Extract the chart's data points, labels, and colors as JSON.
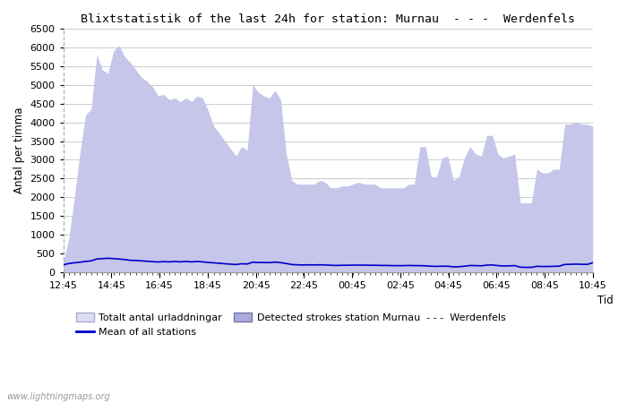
{
  "title": "Blixtstatistik of the last 24h for station: Murnau  - - -  Werdenfels",
  "ylabel": "Antal per timma",
  "xlabel_right": "Tid",
  "watermark": "www.lightningmaps.org",
  "ylim": [
    0,
    6500
  ],
  "yticks": [
    0,
    500,
    1000,
    1500,
    2000,
    2500,
    3000,
    3500,
    4000,
    4500,
    5000,
    5500,
    6000,
    6500
  ],
  "xtick_labels": [
    "12:45",
    "14:45",
    "16:45",
    "18:45",
    "20:45",
    "22:45",
    "00:45",
    "02:45",
    "04:45",
    "06:45",
    "08:45",
    "10:45"
  ],
  "total_fill_color": "#ddddf5",
  "detected_fill_color": "#aaaadd",
  "mean_line_color": "#0000cc",
  "background_color": "#ffffff",
  "grid_color": "#cccccc",
  "legend_labels": [
    "Totalt antal urladdningar",
    "Mean of all stations",
    "Detected strokes station Murnau  - - -  Werdenfels"
  ],
  "n_points": 96,
  "total_values": [
    280,
    900,
    2000,
    3200,
    4200,
    4350,
    5800,
    5400,
    5300,
    5900,
    6050,
    5750,
    5600,
    5400,
    5200,
    5100,
    4950,
    4700,
    4750,
    4600,
    4650,
    4550,
    4650,
    4550,
    4700,
    4650,
    4300,
    3900,
    3700,
    3500,
    3300,
    3100,
    3350,
    3250,
    5000,
    4800,
    4700,
    4650,
    4850,
    4600,
    3150,
    2450,
    2350,
    2350,
    2350,
    2350,
    2450,
    2400,
    2250,
    2250,
    2300,
    2300,
    2350,
    2400,
    2350,
    2350,
    2350,
    2250,
    2250,
    2250,
    2250,
    2250,
    2350,
    2350,
    3350,
    3350,
    2550,
    2550,
    3050,
    3100,
    2450,
    2550,
    3050,
    3350,
    3150,
    3100,
    3650,
    3650,
    3150,
    3050,
    3100,
    3150,
    1850,
    1850,
    1850,
    2750,
    2650,
    2650,
    2750,
    2750,
    3950,
    3950,
    4000,
    3950,
    3950,
    3900
  ],
  "detected_values": [
    280,
    900,
    2000,
    3200,
    4200,
    4350,
    5800,
    5400,
    5300,
    5900,
    6050,
    5750,
    5600,
    5400,
    5200,
    5100,
    4950,
    4700,
    4750,
    4600,
    4650,
    4550,
    4650,
    4550,
    4700,
    4650,
    4300,
    3900,
    3700,
    3500,
    3300,
    3100,
    3350,
    3250,
    5000,
    4800,
    4700,
    4650,
    4850,
    4600,
    3150,
    2450,
    2350,
    2350,
    2350,
    2350,
    2450,
    2400,
    2250,
    2250,
    2300,
    2300,
    2350,
    2400,
    2350,
    2350,
    2350,
    2250,
    2250,
    2250,
    2250,
    2250,
    2350,
    2350,
    3350,
    3350,
    2550,
    2550,
    3050,
    3100,
    2450,
    2550,
    3050,
    3350,
    3150,
    3100,
    3650,
    3650,
    3150,
    3050,
    3100,
    3150,
    1850,
    1850,
    1850,
    2750,
    2650,
    2650,
    2750,
    2750,
    3950,
    3950,
    4000,
    3950,
    3950,
    3900
  ],
  "mean_values": [
    200,
    235,
    255,
    270,
    290,
    305,
    355,
    365,
    375,
    365,
    355,
    340,
    320,
    315,
    305,
    295,
    285,
    275,
    285,
    278,
    290,
    278,
    290,
    278,
    290,
    278,
    265,
    252,
    242,
    228,
    218,
    208,
    228,
    222,
    270,
    262,
    262,
    258,
    272,
    258,
    235,
    208,
    200,
    196,
    200,
    196,
    200,
    196,
    188,
    183,
    188,
    188,
    192,
    192,
    192,
    188,
    188,
    183,
    183,
    178,
    178,
    178,
    183,
    178,
    178,
    173,
    163,
    158,
    163,
    163,
    145,
    150,
    163,
    182,
    178,
    173,
    192,
    196,
    178,
    169,
    173,
    178,
    137,
    132,
    132,
    160,
    155,
    155,
    160,
    164,
    210,
    214,
    218,
    214,
    210,
    255
  ]
}
